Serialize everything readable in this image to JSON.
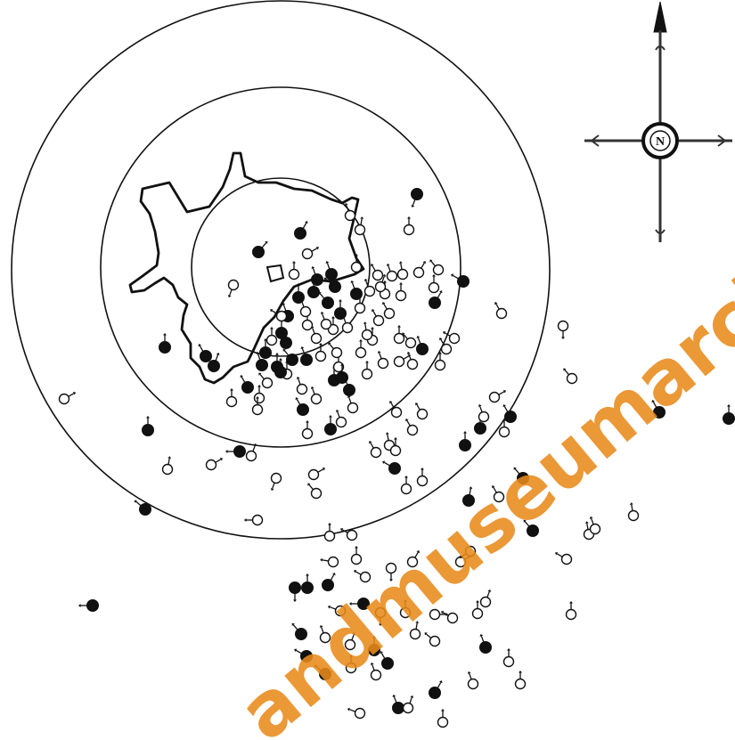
{
  "map": {
    "ring_count": 3,
    "marker_fill_colors": {
      "filled": "#111111",
      "open": "#ffffff"
    },
    "stroke_color": "#111111"
  },
  "compass": {
    "north_letter": "N",
    "arrow_icon": "north-arrow-icon",
    "rose_icon": "compass-rose-icon"
  },
  "watermark": {
    "text": "andmuseumarchi",
    "color": "#e88a1a"
  }
}
